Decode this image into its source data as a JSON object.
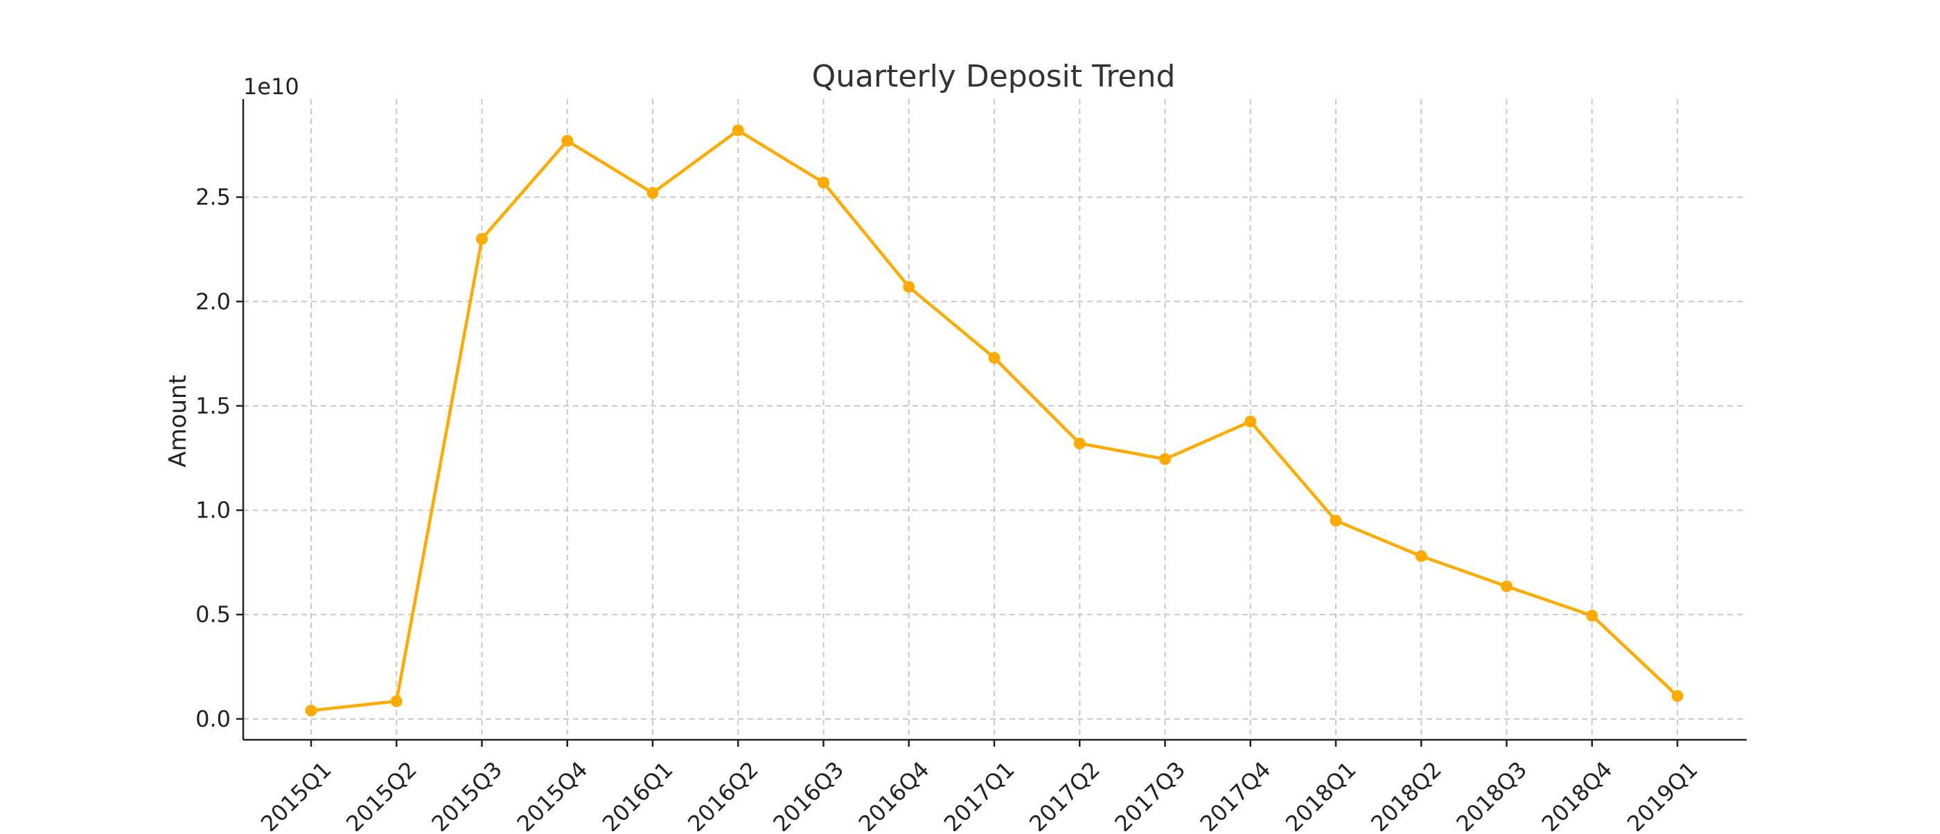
{
  "chart_data": {
    "type": "line",
    "title": "Quarterly Deposit Trend",
    "xlabel": "",
    "ylabel": "Amount",
    "y_offset_label": "1e10",
    "categories": [
      "2015Q1",
      "2015Q2",
      "2015Q3",
      "2015Q4",
      "2016Q1",
      "2016Q2",
      "2016Q3",
      "2016Q4",
      "2017Q1",
      "2017Q2",
      "2017Q3",
      "2017Q4",
      "2018Q1",
      "2018Q2",
      "2018Q3",
      "2018Q4",
      "2019Q1"
    ],
    "series": [
      {
        "values": [
          0.04,
          0.085,
          2.3,
          2.77,
          2.52,
          2.82,
          2.57,
          2.07,
          1.73,
          1.32,
          1.245,
          1.425,
          0.95,
          0.78,
          0.635,
          0.495,
          0.11
        ],
        "color": "#FFAA00"
      }
    ],
    "yticks": [
      {
        "value": 0.0,
        "label": "0.0"
      },
      {
        "value": 0.5,
        "label": "0.5"
      },
      {
        "value": 1.0,
        "label": "1.0"
      },
      {
        "value": 1.5,
        "label": "1.5"
      },
      {
        "value": 2.0,
        "label": "2.0"
      },
      {
        "value": 2.5,
        "label": "2.5"
      }
    ],
    "ylim": [
      -0.1,
      2.97
    ],
    "y_unit_scale": "1e10",
    "grid": true,
    "legend": "none"
  }
}
